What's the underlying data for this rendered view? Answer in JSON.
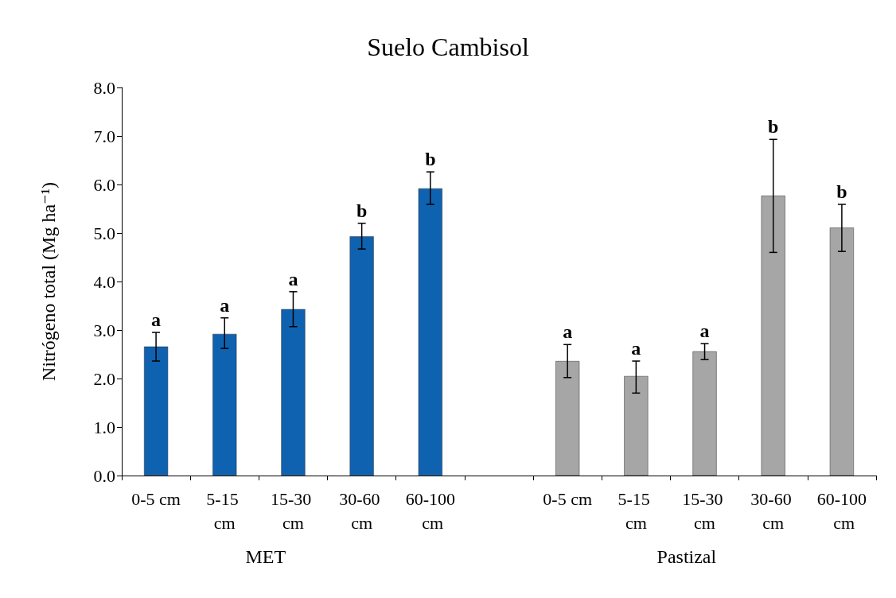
{
  "chart_data": {
    "type": "bar",
    "title": "Suelo Cambisol",
    "ylabel": "Nitrógeno total (Mg ha⁻¹)",
    "categories": [
      "0-5 cm",
      "5-15 cm",
      "15-30 cm",
      "30-60 cm",
      "60-100 cm",
      null,
      "0-5 cm",
      "5-15 cm",
      "15-30 cm",
      "30-60 cm",
      "60-100 cm"
    ],
    "values": [
      2.66,
      2.92,
      3.43,
      4.93,
      5.92,
      null,
      2.36,
      2.05,
      2.56,
      5.77,
      5.11
    ],
    "colors": [
      "#0f62b0",
      "#0f62b0",
      "#0f62b0",
      "#0f62b0",
      "#0f62b0",
      null,
      "#a6a6a6",
      "#a6a6a6",
      "#a6a6a6",
      "#a6a6a6",
      "#a6a6a6"
    ],
    "errors": [
      [
        2.36,
        2.95
      ],
      [
        2.62,
        3.25
      ],
      [
        3.07,
        3.79
      ],
      [
        4.67,
        5.2
      ],
      [
        5.59,
        6.26
      ],
      null,
      [
        2.02,
        2.7
      ],
      [
        1.7,
        2.36
      ],
      [
        2.39,
        2.72
      ],
      [
        4.6,
        6.93
      ],
      [
        4.62,
        5.59
      ]
    ],
    "value_labels": [
      "a",
      "a",
      "a",
      "b",
      "b",
      null,
      "a",
      "a",
      "a",
      "b",
      "b"
    ],
    "annotations": [
      "MET",
      "Pastizal"
    ],
    "ylim": [
      0,
      8
    ],
    "yticks": [
      {
        "value": 0,
        "label": "0.0"
      },
      {
        "value": 1,
        "label": "1.0"
      },
      {
        "value": 2,
        "label": "2.0"
      },
      {
        "value": 3,
        "label": "3.0"
      },
      {
        "value": 4,
        "label": "4.0"
      },
      {
        "value": 5,
        "label": "5.0"
      },
      {
        "value": 6,
        "label": "6.0"
      },
      {
        "value": 7,
        "label": "7.0"
      },
      {
        "value": 8,
        "label": "8.0"
      }
    ],
    "grid": false
  }
}
